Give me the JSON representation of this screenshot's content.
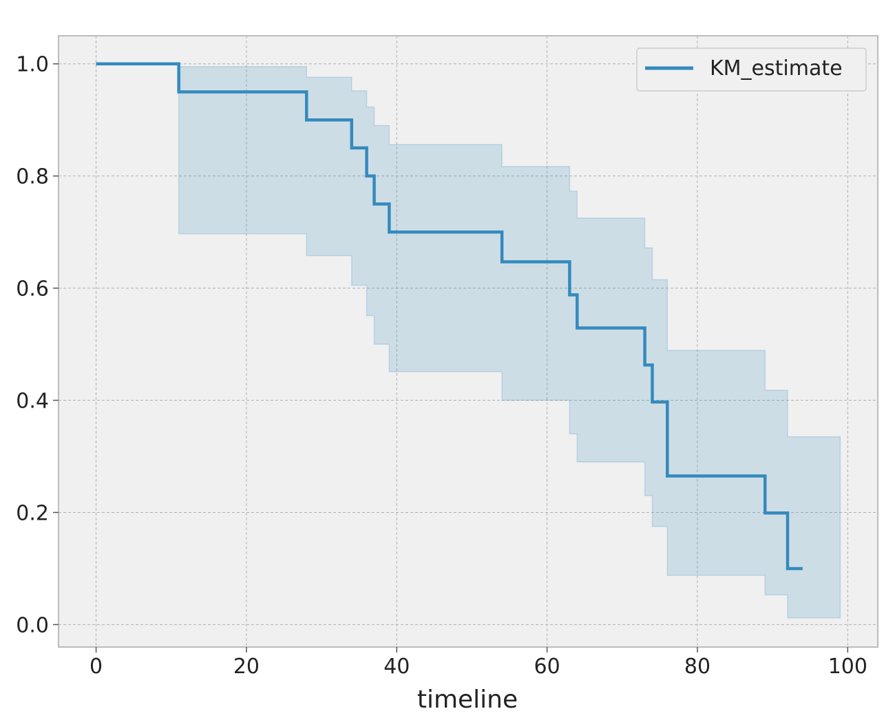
{
  "chart_data": {
    "type": "line",
    "title": "",
    "xlabel": "timeline",
    "ylabel": "",
    "xlim": [
      -5,
      104
    ],
    "ylim": [
      -0.04,
      1.05
    ],
    "x_ticks": [
      0,
      20,
      40,
      60,
      80,
      100
    ],
    "y_ticks": [
      0.0,
      0.2,
      0.4,
      0.6,
      0.8,
      1.0
    ],
    "x_tick_labels": [
      "0",
      "20",
      "40",
      "60",
      "80",
      "100"
    ],
    "y_tick_labels": [
      "0.0",
      "0.2",
      "0.4",
      "0.6",
      "0.8",
      "1.0"
    ],
    "grid": true,
    "legend": {
      "position": "top-right",
      "entries": [
        "KM_estimate"
      ]
    },
    "series": [
      {
        "name": "KM_estimate",
        "step": "post",
        "color": "#348ABD",
        "x": [
          0,
          11,
          28,
          34,
          36,
          37,
          39,
          54,
          63,
          64,
          73,
          74,
          76,
          89,
          92,
          94
        ],
        "y": [
          1.0,
          0.95,
          0.9,
          0.85,
          0.8,
          0.75,
          0.7,
          0.647,
          0.588,
          0.529,
          0.463,
          0.397,
          0.265,
          0.199,
          0.1,
          0.1
        ],
        "ci_lower": [
          1.0,
          0.697,
          0.658,
          0.605,
          0.551,
          0.5,
          0.451,
          0.4,
          0.34,
          0.29,
          0.23,
          0.175,
          0.088,
          0.053,
          0.012,
          0.012
        ],
        "ci_upper": [
          1.0,
          0.995,
          0.976,
          0.952,
          0.923,
          0.89,
          0.856,
          0.817,
          0.773,
          0.725,
          0.672,
          0.615,
          0.489,
          0.418,
          0.335,
          0.335
        ],
        "ci_end_x": 99
      }
    ],
    "colors": {
      "plot_background": "#F0F0F0",
      "grid": "#B0B0B0",
      "frame": "#BCBCBC",
      "line": "#348ABD",
      "band_fill": "#348ABD"
    }
  }
}
